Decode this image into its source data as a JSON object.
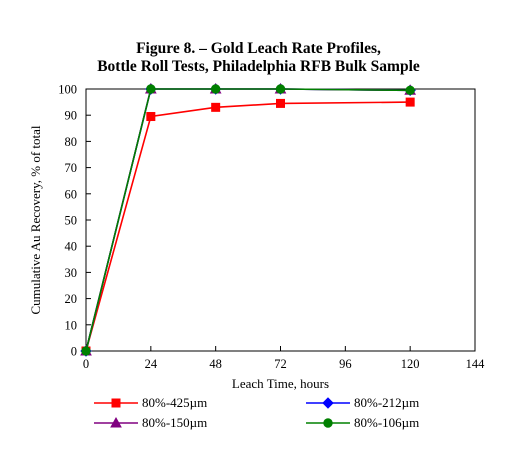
{
  "chart_data": {
    "type": "line",
    "title_lines": [
      "Figure 8. – Gold Leach Rate Profiles,",
      "Bottle Roll Tests, Philadelphia RFB Bulk Sample"
    ],
    "xlabel": "Leach Time, hours",
    "ylabel": "Cumulative Au Recovery, % of total",
    "xlim": [
      0,
      144
    ],
    "ylim": [
      0,
      100
    ],
    "xticks": [
      0,
      24,
      48,
      72,
      96,
      120,
      144
    ],
    "yticks": [
      0,
      10,
      20,
      30,
      40,
      50,
      60,
      70,
      80,
      90,
      100
    ],
    "grid": false,
    "legend_position": "bottom",
    "series": [
      {
        "name": "80%-425µm",
        "color": "#ff0000",
        "marker": "square",
        "x": [
          0,
          24,
          48,
          72,
          120
        ],
        "y": [
          0,
          89.5,
          93,
          94.5,
          95
        ]
      },
      {
        "name": "80%-212µm",
        "color": "#0000ff",
        "marker": "diamond",
        "x": [
          0,
          24,
          48,
          72,
          120
        ],
        "y": [
          0,
          100,
          100,
          100,
          99.5
        ]
      },
      {
        "name": "80%-150µm",
        "color": "#800080",
        "marker": "triangle",
        "x": [
          0,
          24,
          48,
          72,
          120
        ],
        "y": [
          0,
          100,
          100,
          100,
          99.5
        ]
      },
      {
        "name": "80%-106µm",
        "color": "#008000",
        "marker": "circle",
        "x": [
          0,
          24,
          48,
          72,
          120
        ],
        "y": [
          0,
          100,
          100,
          100,
          99.5
        ]
      }
    ]
  }
}
